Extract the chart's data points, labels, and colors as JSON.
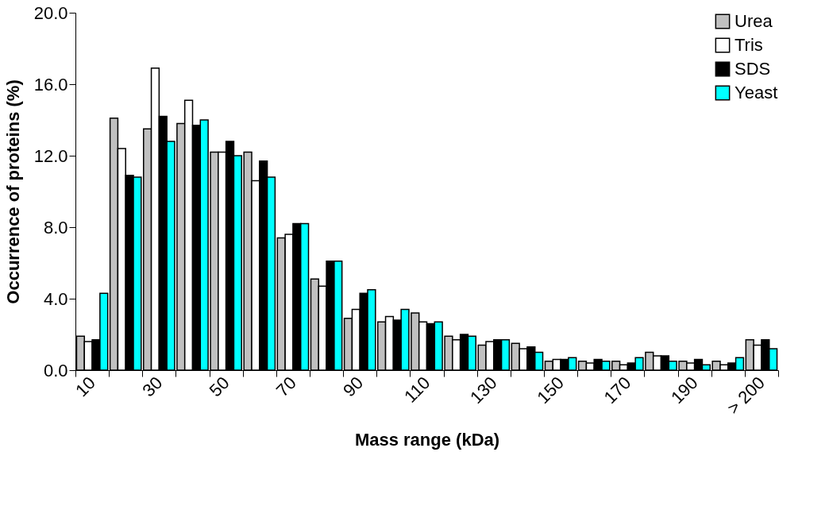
{
  "chart_data": {
    "type": "bar",
    "xlabel": "Mass range (kDa)",
    "ylabel": "Occurrence of proteins (%)",
    "categories": [
      "10",
      null,
      "30",
      null,
      "50",
      null,
      "70",
      null,
      "90",
      null,
      "110",
      null,
      "130",
      null,
      "150",
      null,
      "170",
      null,
      "190",
      null,
      "> 200"
    ],
    "series": [
      {
        "name": "Urea",
        "color": "#c0c0c0",
        "values": [
          1.9,
          14.1,
          13.5,
          13.8,
          12.2,
          12.2,
          7.4,
          5.1,
          2.9,
          2.7,
          3.2,
          1.9,
          1.4,
          1.5,
          0.5,
          0.5,
          0.5,
          1.0,
          0.5,
          0.5,
          1.7
        ]
      },
      {
        "name": "Tris",
        "color": "#ffffff",
        "values": [
          1.6,
          12.4,
          16.9,
          15.1,
          12.2,
          10.6,
          7.6,
          4.7,
          3.4,
          3.0,
          2.7,
          1.7,
          1.6,
          1.2,
          0.6,
          0.4,
          0.3,
          0.8,
          0.4,
          0.3,
          1.4
        ]
      },
      {
        "name": "SDS",
        "color": "#000000",
        "values": [
          1.7,
          10.9,
          14.2,
          13.7,
          12.8,
          11.7,
          8.2,
          6.1,
          4.3,
          2.8,
          2.6,
          2.0,
          1.7,
          1.3,
          0.6,
          0.6,
          0.4,
          0.8,
          0.6,
          0.4,
          1.7
        ]
      },
      {
        "name": "Yeast",
        "color": "#00ffff",
        "values": [
          4.3,
          10.8,
          12.8,
          14.0,
          12.0,
          10.8,
          8.2,
          6.1,
          4.5,
          3.4,
          2.7,
          1.9,
          1.7,
          1.0,
          0.7,
          0.5,
          0.7,
          0.5,
          0.3,
          0.7,
          1.2
        ]
      }
    ],
    "ylim": [
      0,
      20
    ],
    "yticks": [
      {
        "value": 0,
        "label": "0.0"
      },
      {
        "value": 4,
        "label": "4.0"
      },
      {
        "value": 8,
        "label": "8.0"
      },
      {
        "value": 12,
        "label": "12.0"
      },
      {
        "value": 16,
        "label": "16.0"
      },
      {
        "value": 20,
        "label": "20.0"
      }
    ],
    "grid": false,
    "legend": "top right"
  }
}
